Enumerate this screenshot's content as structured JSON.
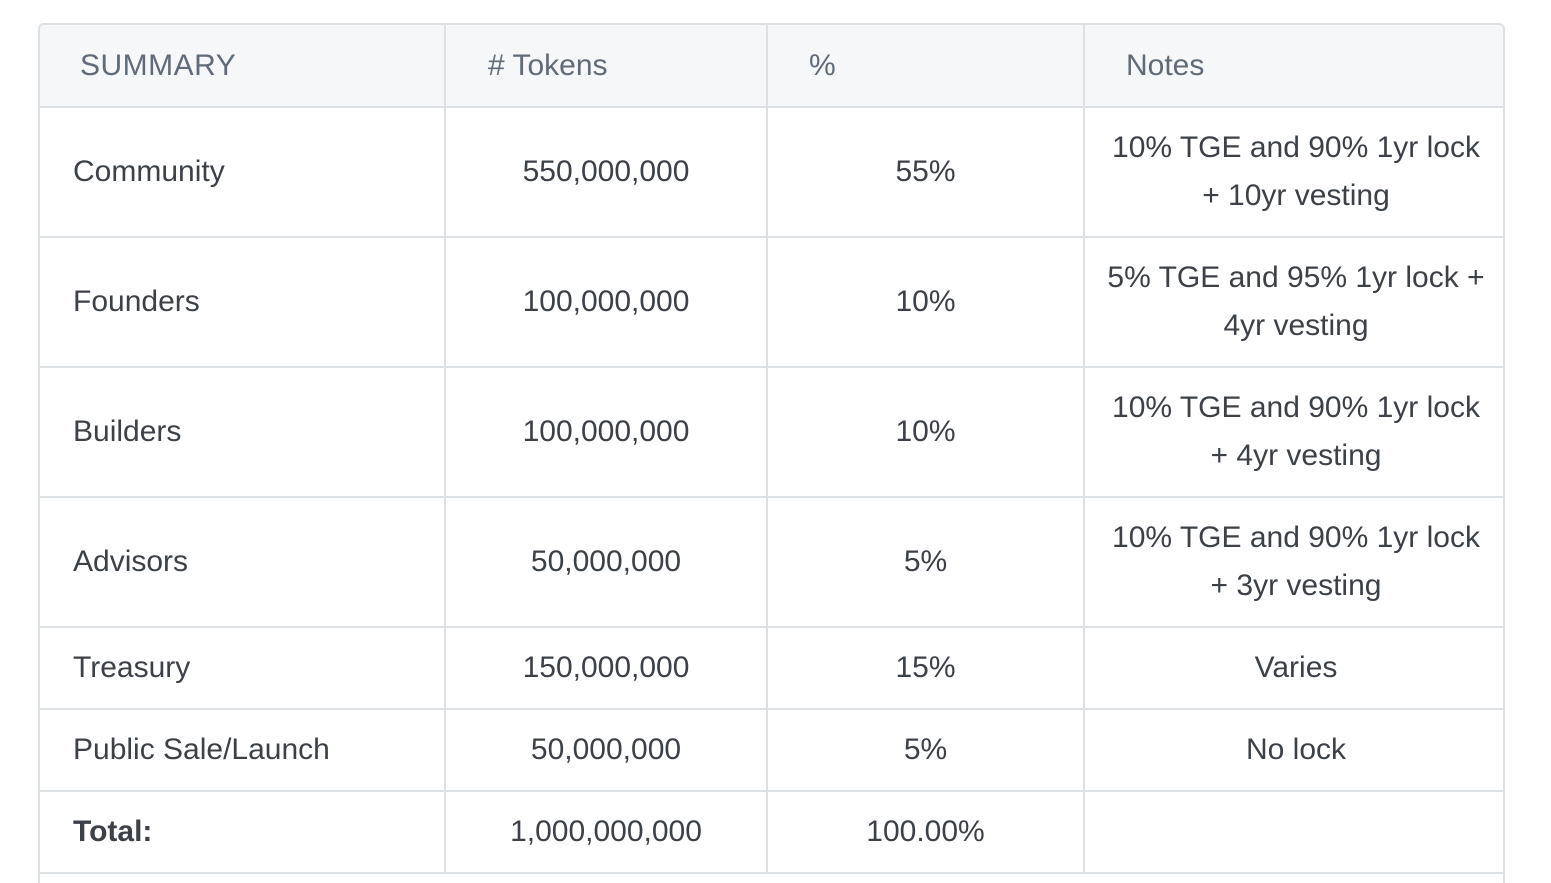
{
  "table": {
    "headers": [
      "SUMMARY",
      "# Tokens",
      "%",
      "Notes"
    ],
    "rows": [
      {
        "label": "Community",
        "tokens": "550,000,000",
        "pct": "55%",
        "notes": "10% TGE and 90% 1yr lock + 10yr vesting"
      },
      {
        "label": "Founders",
        "tokens": "100,000,000",
        "pct": "10%",
        "notes": "5% TGE and 95% 1yr lock + 4yr vesting"
      },
      {
        "label": "Builders",
        "tokens": "100,000,000",
        "pct": "10%",
        "notes": "10% TGE and 90% 1yr lock + 4yr vesting"
      },
      {
        "label": "Advisors",
        "tokens": "50,000,000",
        "pct": "5%",
        "notes": "10% TGE and 90% 1yr lock + 3yr vesting"
      },
      {
        "label": "Treasury",
        "tokens": "150,000,000",
        "pct": "15%",
        "notes": "Varies"
      },
      {
        "label": "Public Sale/Launch",
        "tokens": "50,000,000",
        "pct": "5%",
        "notes": "No lock"
      }
    ],
    "total": {
      "label": "Total:",
      "tokens": "1,000,000,000",
      "pct": "100.00%",
      "notes": ""
    }
  },
  "colors": {
    "border": "#dde1e6",
    "header_bg": "#f5f7f9",
    "header_text": "#5f6b78",
    "body_text": "#3c4148"
  }
}
